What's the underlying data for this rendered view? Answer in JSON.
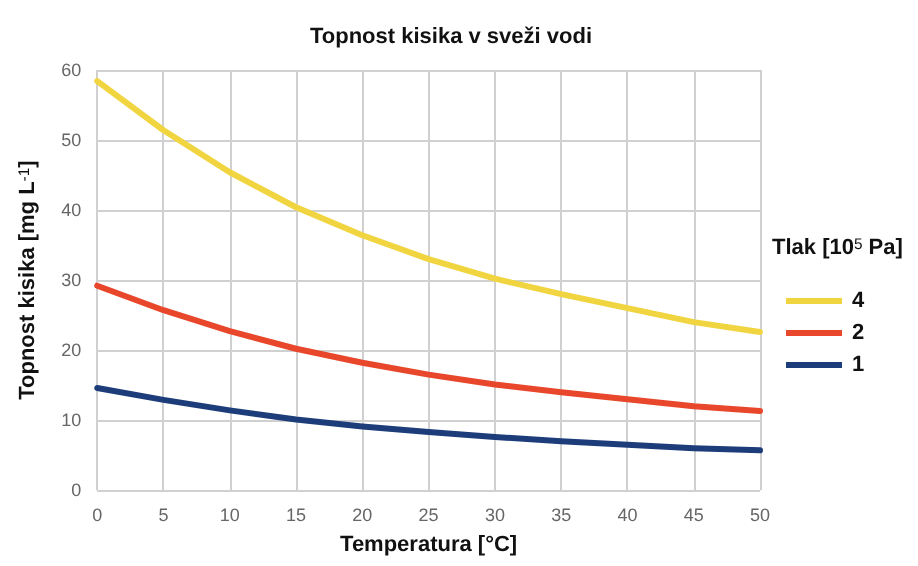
{
  "chart_data": {
    "type": "line",
    "title": "Topnost kisika v sveži vodi",
    "xlabel": "Temperatura [°C]",
    "ylabel": "Topnost kisika [mg L$^{-1}$]",
    "legend_title": "Tlak [10$^{5}$ Pa]",
    "x": [
      0,
      5,
      10,
      15,
      20,
      25,
      30,
      35,
      40,
      45,
      50
    ],
    "series": [
      {
        "name": "4",
        "color": "#f0d541",
        "values": [
          58.4,
          51.4,
          45.4,
          40.4,
          36.4,
          33,
          30.2,
          28,
          26,
          24,
          22.6
        ]
      },
      {
        "name": "2",
        "color": "#e9472b",
        "values": [
          29.2,
          25.7,
          22.7,
          20.2,
          18.2,
          16.5,
          15.1,
          14,
          13,
          12,
          11.3
        ]
      },
      {
        "name": "1",
        "color": "#1d3d7a",
        "values": [
          14.6,
          12.9,
          11.4,
          10.1,
          9.1,
          8.3,
          7.6,
          7,
          6.5,
          6,
          5.7
        ]
      }
    ],
    "xlim": [
      0,
      50
    ],
    "xticks": [
      0,
      5,
      10,
      15,
      20,
      25,
      30,
      35,
      40,
      45,
      50
    ],
    "ylim": [
      0,
      60
    ],
    "yticks": [
      0,
      10,
      20,
      30,
      40,
      50,
      60
    ],
    "grid": true,
    "legend": "right",
    "marker": "none",
    "line_style": "solid"
  }
}
